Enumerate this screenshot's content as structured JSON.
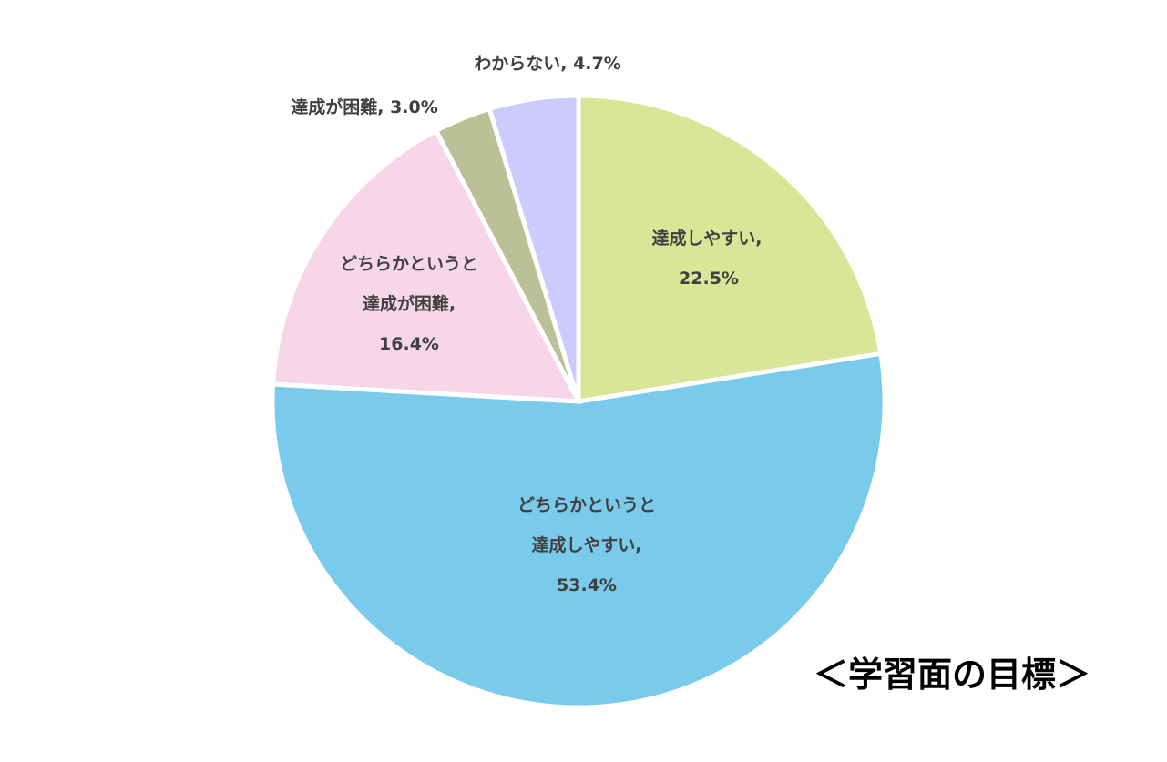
{
  "chart_data": {
    "type": "pie",
    "title": "＜学習面の目標＞",
    "slices": [
      {
        "label": "達成しやすい",
        "value": 22.5,
        "value_label": "22.5%",
        "color": "#d9e697"
      },
      {
        "label": "どちらかというと達成しやすい",
        "value": 53.4,
        "value_label": "53.4%",
        "color": "#7acaeb"
      },
      {
        "label": "どちらかというと達成が困難",
        "value": 16.4,
        "value_label": "16.4%",
        "color": "#f7d7e7"
      },
      {
        "label": "達成が困難",
        "value": 3.0,
        "value_label": "3.0%",
        "color": "#bcc096"
      },
      {
        "label": "わからない",
        "value": 4.7,
        "value_label": "4.7%",
        "color": "#cccbfc"
      }
    ],
    "start_angle": "12 o'clock",
    "direction": "clockwise",
    "legend": "none",
    "labels": {
      "s0": [
        "達成しやすい,",
        "22.5%"
      ],
      "s1": [
        "どちらかというと",
        "達成しやすい,",
        "53.4%"
      ],
      "s2": [
        "どちらかというと",
        "達成が困難,",
        "16.4%"
      ],
      "s3": "達成が困難, 3.0%",
      "s4": "わからない, 4.7%"
    }
  }
}
